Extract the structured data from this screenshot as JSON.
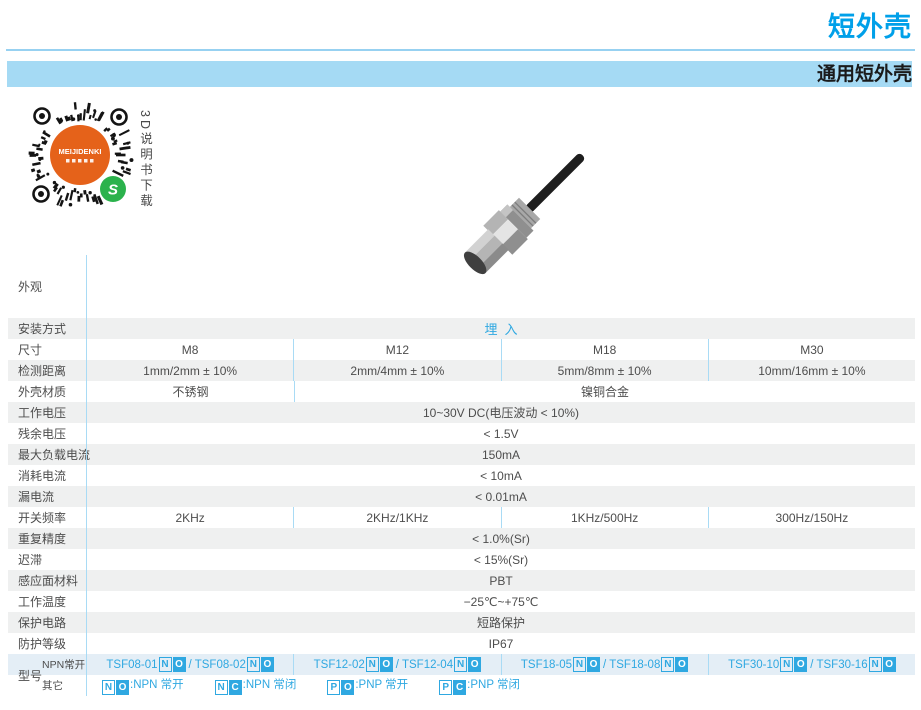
{
  "header": {
    "page_title": "短外壳",
    "section_title": "通用短外壳"
  },
  "qr": {
    "brand": "MEIJIDENKI",
    "caption": "3D说明书下载"
  },
  "colors": {
    "accent_cyan": "#00A0E9",
    "banner_blue": "#A5DAF4",
    "row_gray": "#EFF0F0",
    "model_row_blue": "#E4EEF6",
    "model_text_cyan": "#2FA8E1",
    "qr_orange": "#E5621A",
    "wechat_green": "#2BB24C"
  },
  "spec": {
    "appearance": {
      "label": "外观"
    },
    "mounting": {
      "label": "安装方式",
      "value": "埋入"
    },
    "size": {
      "label": "尺寸",
      "values": [
        "M8",
        "M12",
        "M18",
        "M30"
      ]
    },
    "distance": {
      "label": "检测距离",
      "values": [
        "1mm/2mm ± 10%",
        "2mm/4mm ± 10%",
        "5mm/8mm ± 10%",
        "10mm/16mm ± 10%"
      ]
    },
    "material": {
      "label": "外壳材质",
      "m8": "不锈钢",
      "others": "镍铜合金"
    },
    "voltage": {
      "label": "工作电压",
      "value": "10~30V DC(电压波动 < 10%)"
    },
    "residual_voltage": {
      "label": "残余电压",
      "value": "< 1.5V"
    },
    "max_load_current": {
      "label": "最大负载电流",
      "value": "150mA"
    },
    "consumption_current": {
      "label": "消耗电流",
      "value": "< 10mA"
    },
    "leakage_current": {
      "label": "漏电流",
      "value": "< 0.01mA"
    },
    "switching_frequency": {
      "label": "开关频率",
      "values": [
        "2KHz",
        "2KHz/1KHz",
        "1KHz/500Hz",
        "300Hz/150Hz"
      ]
    },
    "repeat_accuracy": {
      "label": "重复精度",
      "value": "< 1.0%(Sr)"
    },
    "hysteresis": {
      "label": "迟滞",
      "value": "< 15%(Sr)"
    },
    "sensing_face_material": {
      "label": "感应面材料",
      "value": "PBT"
    },
    "operating_temperature": {
      "label": "工作温度",
      "value": "−25℃~+75℃"
    },
    "protection_circuit": {
      "label": "保护电路",
      "value": "短路保护"
    },
    "ip_rating": {
      "label": "防护等级",
      "value": "IP67"
    }
  },
  "models": {
    "group_label": "型号",
    "npn_no_label": "NPN常开",
    "other_label": "其它",
    "separator": "/",
    "suffix": {
      "first": "N",
      "second": "O"
    },
    "cells": [
      {
        "a": "TSF08-01",
        "b": "TSF08-02"
      },
      {
        "a": "TSF12-02",
        "b": "TSF12-04"
      },
      {
        "a": "TSF18-05",
        "b": "TSF18-08"
      },
      {
        "a": "TSF30-10",
        "b": "TSF30-16"
      }
    ],
    "legend": [
      {
        "first": "N",
        "second": "O",
        "desc": ":NPN 常开"
      },
      {
        "first": "N",
        "second": "C",
        "desc": ":NPN 常闭"
      },
      {
        "first": "P",
        "second": "O",
        "desc": ":PNP 常开"
      },
      {
        "first": "P",
        "second": "C",
        "desc": ":PNP 常闭"
      }
    ]
  }
}
